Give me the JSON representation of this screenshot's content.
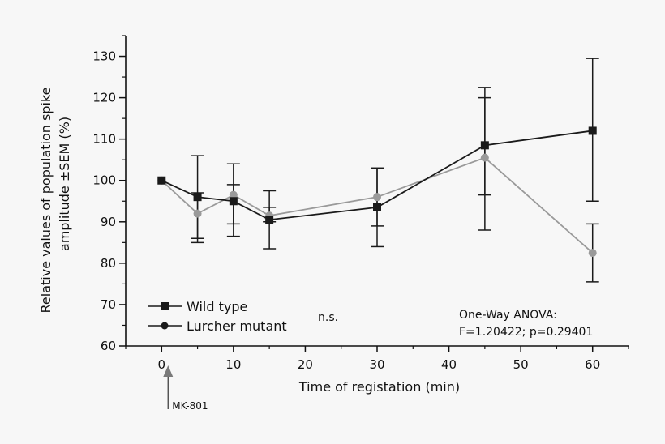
{
  "chart_data": {
    "type": "line",
    "title": "",
    "xlabel": "Time of registation (min)",
    "ylabel_line1": "Relative values of population spike",
    "ylabel_line2": "amplitude ±SEM (%)",
    "xlim": [
      -5,
      65
    ],
    "ylim": [
      60,
      135
    ],
    "xticks": [
      0,
      10,
      20,
      30,
      40,
      50,
      60
    ],
    "yticks": [
      60,
      70,
      80,
      90,
      100,
      110,
      120,
      130
    ],
    "x": [
      0,
      5,
      10,
      15,
      30,
      45,
      60
    ],
    "series": [
      {
        "name": "Wild type",
        "marker": "square",
        "color": "#1a1a1a",
        "values": [
          100,
          96,
          95,
          90.5,
          93.5,
          108.5,
          112
        ],
        "err_low": [
          100,
          85,
          86.5,
          83.5,
          84,
          88,
          95
        ],
        "err_high": [
          100,
          106,
          104,
          97.5,
          103,
          122.5,
          129.5
        ]
      },
      {
        "name": "Lurcher mutant",
        "marker": "circle",
        "color": "#9a9a9a",
        "values": [
          100,
          92,
          96.5,
          91.5,
          96,
          105.5,
          82.5
        ],
        "err_low": [
          100,
          86,
          89.5,
          90,
          89,
          96.5,
          75.5
        ],
        "err_high": [
          100,
          97,
          99,
          93.5,
          103,
          120,
          89.5
        ]
      }
    ],
    "legend": {
      "placement": "bottom-left",
      "entries": [
        "Wild type",
        "Lurcher mutant"
      ]
    },
    "annotations": {
      "significance": "n.s.",
      "anova_line1": "One-Way ANOVA:",
      "anova_line2": "F=1.20422; p=0.29401",
      "arrow_label": "MK-801",
      "arrow_x": 0
    }
  }
}
